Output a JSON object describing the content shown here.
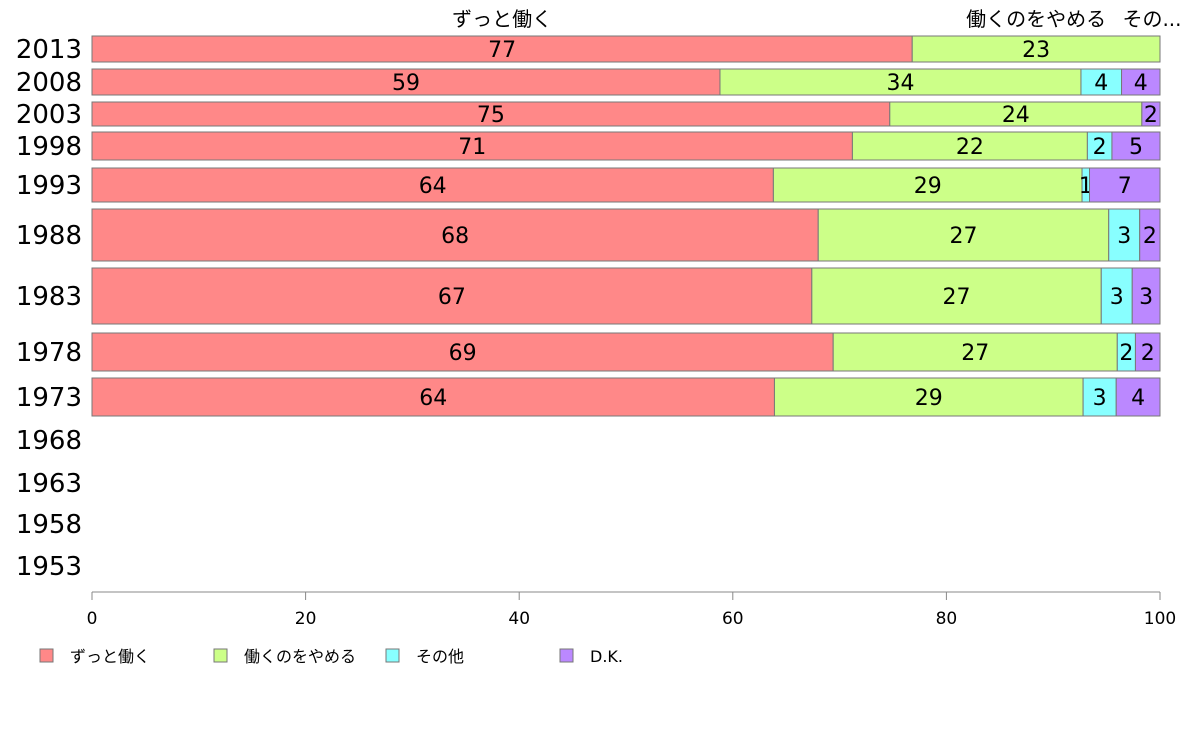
{
  "chart_data": {
    "type": "bar",
    "orientation": "horizontal",
    "stacked": true,
    "xlim": [
      0,
      100
    ],
    "x_ticks": [
      0,
      20,
      40,
      60,
      80,
      100
    ],
    "years": [
      "2013",
      "2008",
      "2003",
      "1998",
      "1993",
      "1988",
      "1983",
      "1978",
      "1973",
      "1968",
      "1963",
      "1958",
      "1953"
    ],
    "top_labels": [
      "ずっと働く",
      "働くのをやめる",
      "その..."
    ],
    "series": [
      {
        "name": "ずっと働く",
        "color": "#ff8888",
        "values": [
          76.8,
          58.8,
          74.7,
          71.2,
          63.8,
          68.0,
          67.4,
          69.4,
          63.9,
          null,
          null,
          null,
          null
        ]
      },
      {
        "name": "働くのをやめる",
        "color": "#ccff88",
        "values": [
          23.2,
          33.8,
          23.6,
          22.0,
          28.9,
          27.2,
          27.1,
          26.6,
          28.9,
          null,
          null,
          null,
          null
        ]
      },
      {
        "name": "その他",
        "color": "#88ffff",
        "values": [
          0,
          3.8,
          0,
          2.3,
          0.7,
          2.9,
          2.9,
          1.7,
          3.1,
          null,
          null,
          null,
          null
        ]
      },
      {
        "name": "D.K.",
        "color": "#bb88ff",
        "values": [
          0,
          3.6,
          1.7,
          4.5,
          6.6,
          1.9,
          2.6,
          2.3,
          4.1,
          null,
          null,
          null,
          null
        ]
      }
    ],
    "labels": [
      [
        "77",
        "23",
        "",
        ""
      ],
      [
        "59",
        "34",
        "4",
        "4"
      ],
      [
        "75",
        "24",
        "",
        "2"
      ],
      [
        "71",
        "22",
        "2",
        "5"
      ],
      [
        "64",
        "29",
        "1",
        "7"
      ],
      [
        "68",
        "27",
        "3",
        "2"
      ],
      [
        "67",
        "27",
        "3",
        "3"
      ],
      [
        "69",
        "27",
        "2",
        "2"
      ],
      [
        "64",
        "29",
        "3",
        "4"
      ],
      [
        "",
        "",
        "",
        ""
      ],
      [
        "",
        "",
        "",
        ""
      ],
      [
        "",
        "",
        "",
        ""
      ],
      [
        "",
        "",
        "",
        ""
      ]
    ],
    "legend": [
      "ずっと働く",
      "働くのをやめる",
      "その他",
      "D.K."
    ],
    "legend_position": "bottom",
    "grid": false
  }
}
